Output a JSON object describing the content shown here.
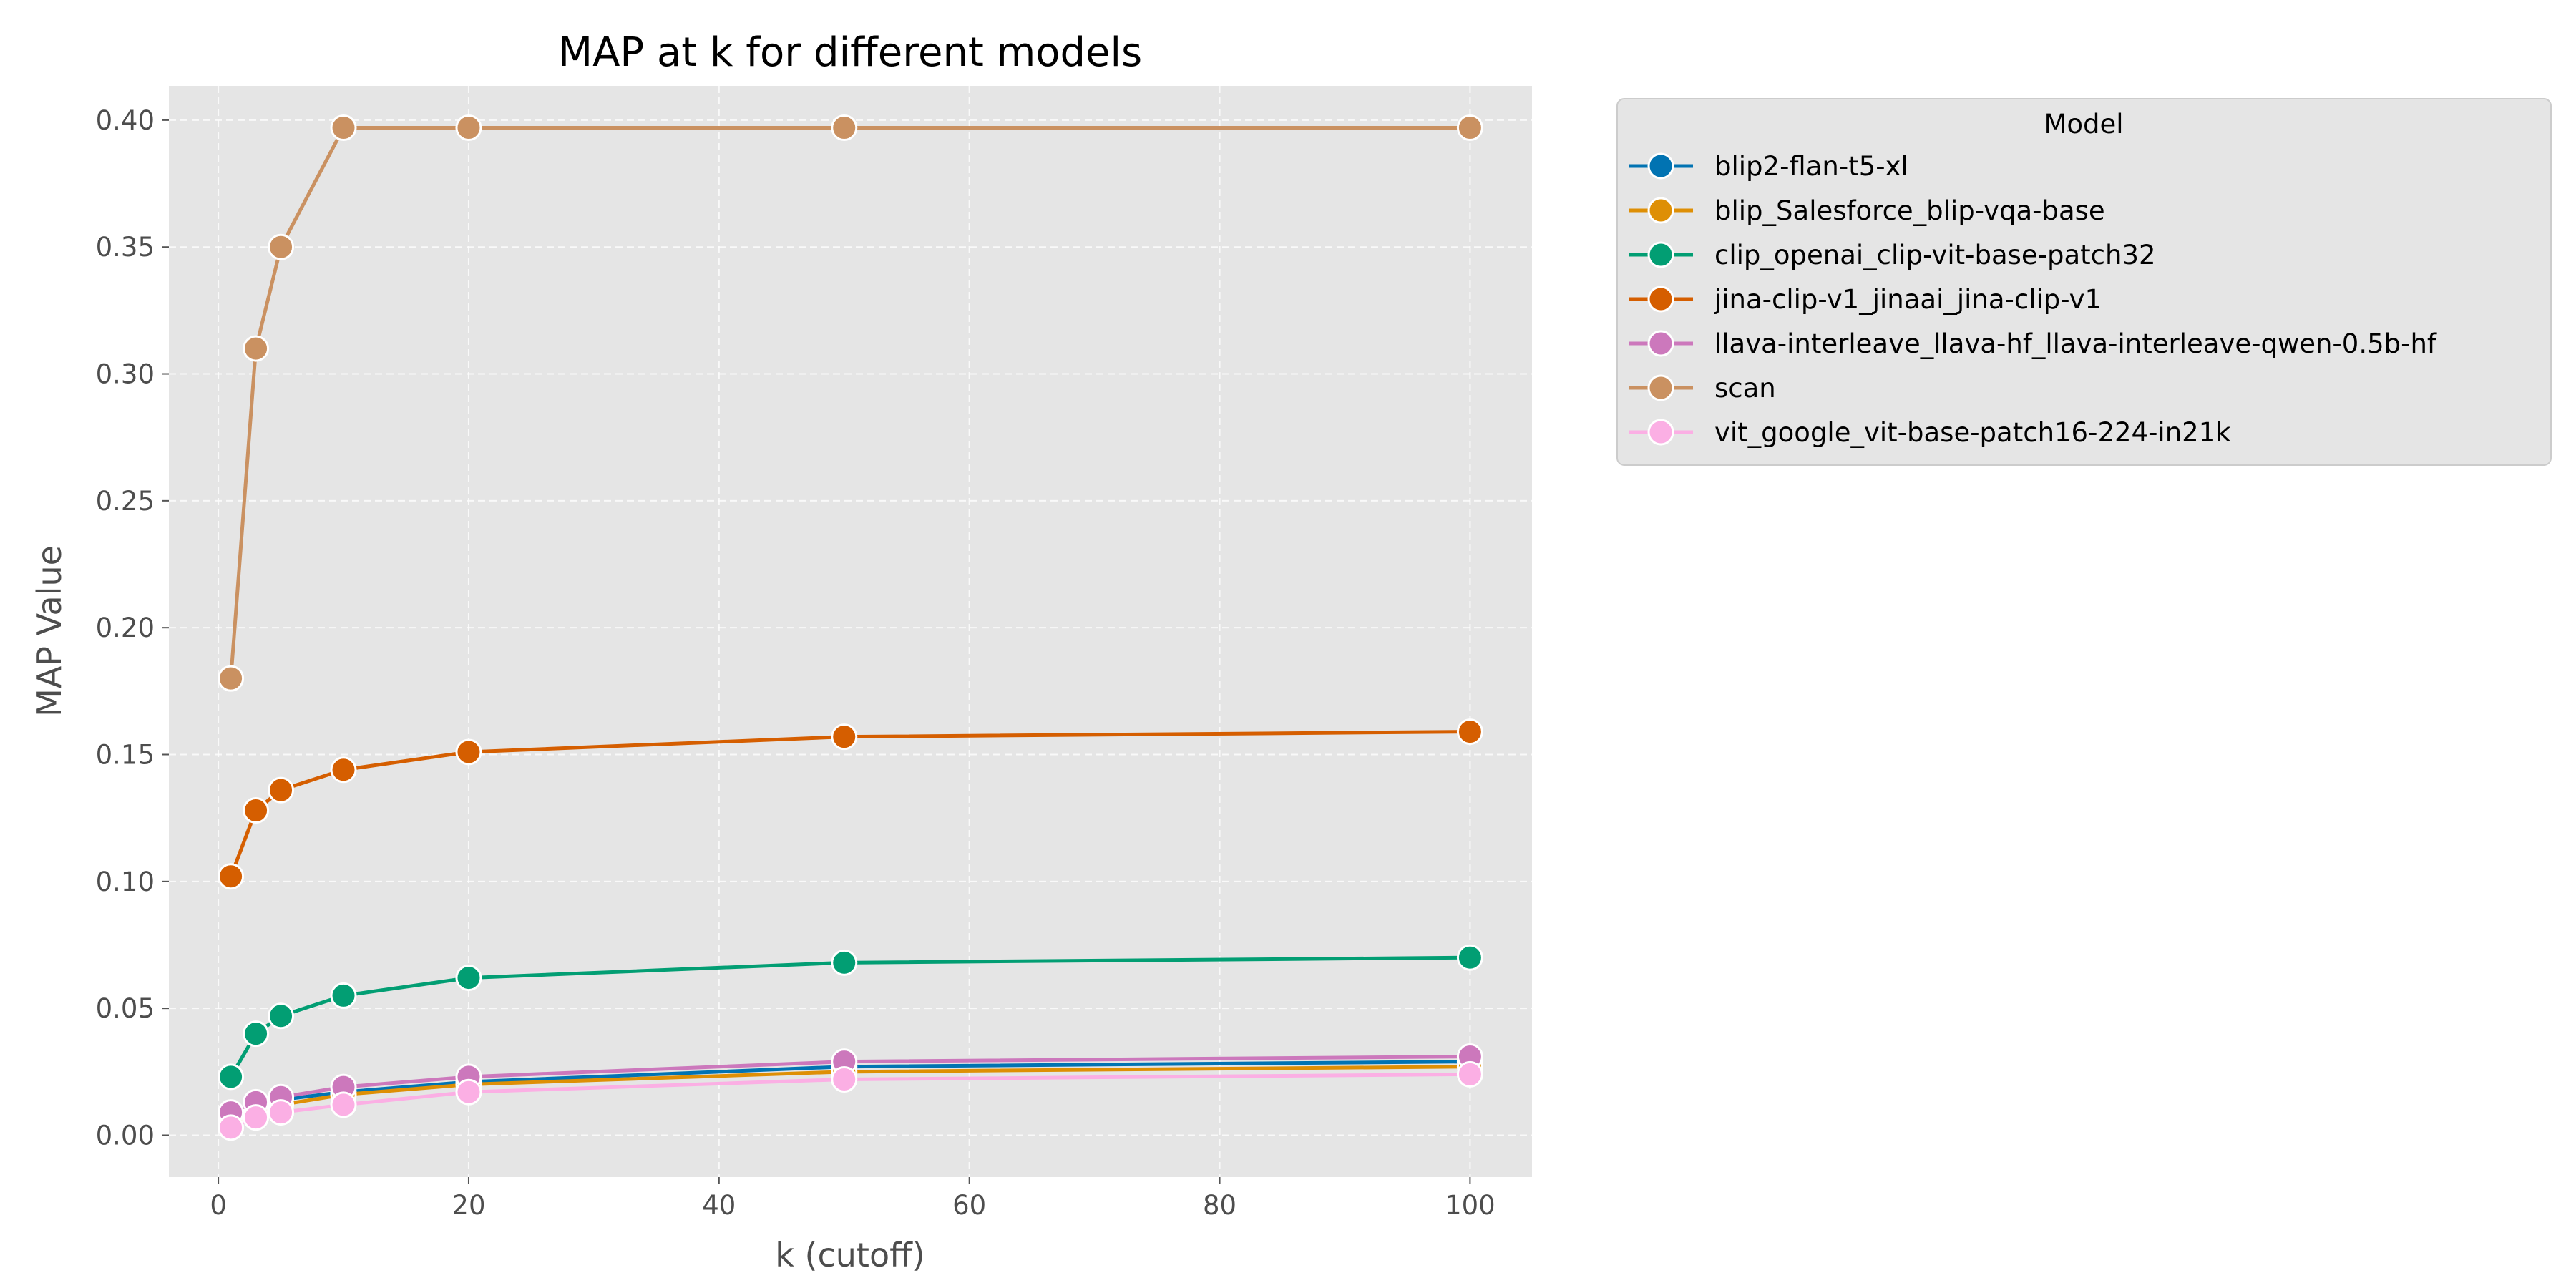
{
  "chart_data": {
    "type": "line",
    "title": "MAP at k for different models",
    "xlabel": "k (cutoff)",
    "ylabel": "MAP Value",
    "x": [
      1,
      3,
      5,
      10,
      20,
      50,
      100
    ],
    "xlim": [
      -3.95,
      104.95
    ],
    "ylim": [
      -0.0165,
      0.4135
    ],
    "xticks": [
      0,
      20,
      40,
      60,
      80,
      100
    ],
    "xtick_labels": [
      "0",
      "20",
      "40",
      "60",
      "80",
      "100"
    ],
    "yticks": [
      0.0,
      0.05,
      0.1,
      0.15,
      0.2,
      0.25,
      0.3,
      0.35,
      0.4
    ],
    "ytick_labels": [
      "0.00",
      "0.05",
      "0.10",
      "0.15",
      "0.20",
      "0.25",
      "0.30",
      "0.35",
      "0.40"
    ],
    "grid": true,
    "legend": {
      "title": "Model",
      "placement": "outside-right-top"
    },
    "series": [
      {
        "name": "blip2-flan-t5-xl",
        "color": "#0173b2",
        "values": [
          0.008,
          0.012,
          0.014,
          0.017,
          0.021,
          0.027,
          0.029
        ]
      },
      {
        "name": "blip_Salesforce_blip-vqa-base",
        "color": "#de8f05",
        "values": [
          0.006,
          0.01,
          0.012,
          0.016,
          0.02,
          0.025,
          0.027
        ]
      },
      {
        "name": "clip_openai_clip-vit-base-patch32",
        "color": "#029e73",
        "values": [
          0.023,
          0.04,
          0.047,
          0.055,
          0.062,
          0.068,
          0.07
        ]
      },
      {
        "name": "jina-clip-v1_jinaai_jina-clip-v1",
        "color": "#d55e00",
        "values": [
          0.102,
          0.128,
          0.136,
          0.144,
          0.151,
          0.157,
          0.159
        ]
      },
      {
        "name": "llava-interleave_llava-hf_llava-interleave-qwen-0.5b-hf",
        "color": "#cc78bc",
        "values": [
          0.009,
          0.013,
          0.015,
          0.019,
          0.023,
          0.029,
          0.031
        ]
      },
      {
        "name": "scan",
        "color": "#ca9161",
        "values": [
          0.18,
          0.31,
          0.35,
          0.397,
          0.397,
          0.397,
          0.397
        ]
      },
      {
        "name": "vit_google_vit-base-patch16-224-in21k",
        "color": "#fbafe4",
        "values": [
          0.003,
          0.007,
          0.009,
          0.012,
          0.017,
          0.022,
          0.024
        ]
      }
    ]
  }
}
